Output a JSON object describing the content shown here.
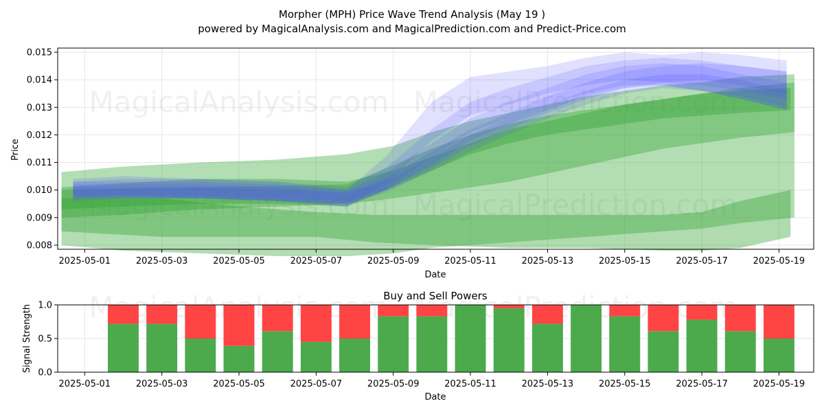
{
  "chart_data": [
    {
      "type": "area",
      "title": "Morpher (MPH) Price Wave Trend Analysis (May 19 )",
      "subtitle": "powered by MagicalAnalysis.com and MagicalPrediction.com and Predict-Price.com",
      "xlabel": "Date",
      "ylabel": "Price",
      "ylim": [
        0.00785,
        0.01515
      ],
      "xlim": [
        "2025-04-30.3",
        "2025-05-19.9"
      ],
      "grid": true,
      "x_ticks": [
        "2025-05-01",
        "2025-05-03",
        "2025-05-05",
        "2025-05-07",
        "2025-05-09",
        "2025-05-11",
        "2025-05-13",
        "2025-05-15",
        "2025-05-17",
        "2025-05-19"
      ],
      "y_ticks": [
        "0.008",
        "0.009",
        "0.010",
        "0.011",
        "0.012",
        "0.013",
        "0.014",
        "0.015"
      ],
      "green_bands": [
        {
          "x": [
            0.4,
            2,
            4,
            6,
            7.8,
            9,
            10,
            11,
            12,
            13,
            14,
            15,
            16,
            17,
            18,
            19.4
          ],
          "upper": [
            0.01065,
            0.01085,
            0.011,
            0.0111,
            0.0113,
            0.0116,
            0.0121,
            0.0125,
            0.0128,
            0.0131,
            0.0134,
            0.0136,
            0.0138,
            0.0139,
            0.0141,
            0.0142
          ],
          "lower": [
            0.008,
            0.0078,
            0.0077,
            0.0076,
            0.0076,
            0.0077,
            0.0079,
            0.008,
            0.0081,
            0.0082,
            0.0083,
            0.0084,
            0.0085,
            0.0086,
            0.0088,
            0.009
          ]
        },
        {
          "x": [
            0.4,
            2,
            4,
            6,
            7.8,
            9,
            10,
            11,
            12,
            13,
            14,
            15,
            16,
            17,
            18,
            19.4
          ],
          "upper": [
            0.0101,
            0.01025,
            0.0104,
            0.0104,
            0.0103,
            0.0107,
            0.0112,
            0.0117,
            0.0122,
            0.0125,
            0.0128,
            0.0131,
            0.0133,
            0.0135,
            0.0137,
            0.0139
          ],
          "lower": [
            0.009,
            0.0091,
            0.0093,
            0.0094,
            0.0095,
            0.0097,
            0.0099,
            0.0101,
            0.0103,
            0.0106,
            0.0109,
            0.0112,
            0.0115,
            0.0117,
            0.0119,
            0.0121
          ]
        },
        {
          "x": [
            0.4,
            3,
            5,
            7,
            8.5,
            10,
            12,
            14,
            16,
            17,
            18,
            19.3
          ],
          "upper": [
            0.0097,
            0.0097,
            0.0094,
            0.0092,
            0.0091,
            0.0091,
            0.0091,
            0.0091,
            0.0091,
            0.0092,
            0.0096,
            0.01
          ],
          "lower": [
            0.0085,
            0.0083,
            0.0083,
            0.0083,
            0.0081,
            0.008,
            0.0079,
            0.0079,
            0.0078,
            0.0078,
            0.0079,
            0.0083
          ]
        },
        {
          "x": [
            0.4,
            2,
            4,
            6,
            7.8,
            9,
            10,
            11,
            12,
            13,
            14,
            15,
            16,
            17,
            18,
            19.3
          ],
          "upper": [
            0.01,
            0.01005,
            0.0101,
            0.01015,
            0.0102,
            0.0109,
            0.0115,
            0.012,
            0.0124,
            0.0127,
            0.0129,
            0.0131,
            0.0133,
            0.0135,
            0.0136,
            0.0137
          ],
          "lower": [
            0.0093,
            0.0094,
            0.0095,
            0.0095,
            0.0094,
            0.0101,
            0.0107,
            0.0113,
            0.0117,
            0.012,
            0.0122,
            0.0124,
            0.0126,
            0.0127,
            0.0128,
            0.0129
          ]
        }
      ],
      "blue_bands": [
        {
          "x": [
            0.7,
            2,
            4,
            6,
            7.8,
            8.8,
            10,
            11,
            12,
            13,
            14,
            15,
            16,
            17,
            18,
            19.2
          ],
          "upper": [
            0.0103,
            0.0104,
            0.0104,
            0.0103,
            0.01,
            0.0112,
            0.0132,
            0.0141,
            0.0143,
            0.0145,
            0.0148,
            0.015,
            0.0149,
            0.015,
            0.0149,
            0.0147
          ],
          "lower": [
            0.0097,
            0.0098,
            0.0097,
            0.0096,
            0.0094,
            0.0102,
            0.0118,
            0.0127,
            0.0131,
            0.0135,
            0.0138,
            0.014,
            0.0139,
            0.0138,
            0.0136,
            0.0133
          ]
        },
        {
          "x": [
            0.7,
            2,
            4,
            6,
            7.8,
            8.8,
            10,
            11,
            12,
            13,
            14,
            15,
            16,
            17,
            18,
            19.2
          ],
          "upper": [
            0.0104,
            0.0105,
            0.0104,
            0.0103,
            0.0101,
            0.0108,
            0.0122,
            0.0132,
            0.0137,
            0.0141,
            0.0145,
            0.0147,
            0.0148,
            0.0147,
            0.0145,
            0.0143
          ],
          "lower": [
            0.0096,
            0.0097,
            0.0097,
            0.0096,
            0.0094,
            0.01,
            0.0112,
            0.0121,
            0.0126,
            0.0131,
            0.0135,
            0.0138,
            0.0138,
            0.0136,
            0.0133,
            0.0129
          ]
        },
        {
          "x": [
            0.7,
            2,
            4,
            6,
            7.8,
            8.8,
            10,
            11,
            12,
            13,
            14,
            15,
            16,
            17,
            18,
            19.2
          ],
          "upper": [
            0.0103,
            0.0103,
            0.0103,
            0.0102,
            0.01,
            0.0106,
            0.0117,
            0.0126,
            0.0132,
            0.0137,
            0.0142,
            0.0145,
            0.0146,
            0.0145,
            0.0142,
            0.0139
          ],
          "lower": [
            0.0097,
            0.0097,
            0.0097,
            0.0096,
            0.0095,
            0.01,
            0.0109,
            0.0118,
            0.0124,
            0.0129,
            0.0134,
            0.0137,
            0.0138,
            0.0136,
            0.0133,
            0.0129
          ]
        },
        {
          "x": [
            0.7,
            2,
            4,
            6,
            7.8,
            8.8,
            10,
            11,
            12,
            13,
            14,
            15,
            16,
            17,
            18,
            19.2
          ],
          "upper": [
            0.0102,
            0.0102,
            0.0102,
            0.0101,
            0.0099,
            0.0104,
            0.0114,
            0.0122,
            0.0128,
            0.0134,
            0.0139,
            0.0143,
            0.0145,
            0.0146,
            0.0145,
            0.0143
          ],
          "lower": [
            0.0098,
            0.0098,
            0.0098,
            0.0097,
            0.0096,
            0.01,
            0.0108,
            0.0116,
            0.0122,
            0.0128,
            0.0133,
            0.0137,
            0.0139,
            0.014,
            0.0138,
            0.0135
          ]
        },
        {
          "x": [
            0.7,
            2,
            4,
            6,
            7.8,
            8.8,
            10,
            11,
            12,
            13,
            14,
            15,
            16,
            17,
            18,
            19.2
          ],
          "upper": [
            0.0101,
            0.0101,
            0.0101,
            0.01,
            0.0099,
            0.0103,
            0.0112,
            0.012,
            0.0126,
            0.0131,
            0.0136,
            0.014,
            0.0142,
            0.0142,
            0.014,
            0.0136
          ],
          "lower": [
            0.0097,
            0.0097,
            0.0097,
            0.0096,
            0.0095,
            0.0099,
            0.0107,
            0.0114,
            0.012,
            0.0126,
            0.0131,
            0.0135,
            0.0137,
            0.0136,
            0.0134,
            0.013
          ]
        }
      ],
      "colors": {
        "green": "#2ca02c",
        "blue": "#4d4dff",
        "teal": "#2a7070"
      },
      "watermarks": [
        "MagicalAnalysis.com",
        "MagicalPrediction.com"
      ]
    },
    {
      "type": "bar",
      "title": "Buy and Sell Powers",
      "xlabel": "Date",
      "ylabel": "Signal Strength",
      "ylim": [
        0.0,
        1.0
      ],
      "x_ticks": [
        "2025-05-01",
        "2025-05-03",
        "2025-05-05",
        "2025-05-07",
        "2025-05-09",
        "2025-05-11",
        "2025-05-13",
        "2025-05-15",
        "2025-05-17",
        "2025-05-19"
      ],
      "y_ticks": [
        "0.0",
        "0.5",
        "1.0"
      ],
      "categories": [
        "2025-05-02",
        "2025-05-03",
        "2025-05-04",
        "2025-05-05",
        "2025-05-06",
        "2025-05-07",
        "2025-05-08",
        "2025-05-09",
        "2025-05-10",
        "2025-05-11",
        "2025-05-12",
        "2025-05-13",
        "2025-05-14",
        "2025-05-15",
        "2025-05-16",
        "2025-05-17",
        "2025-05-18",
        "2025-05-19"
      ],
      "series": [
        {
          "name": "Buy",
          "color": "#4caa4c",
          "values": [
            0.72,
            0.72,
            0.5,
            0.39,
            0.61,
            0.45,
            0.5,
            0.83,
            0.83,
            1.0,
            0.95,
            0.72,
            1.0,
            0.83,
            0.61,
            0.78,
            0.61,
            0.5
          ]
        },
        {
          "name": "Sell",
          "color": "#ff4444",
          "values": [
            0.28,
            0.28,
            0.5,
            0.61,
            0.39,
            0.55,
            0.5,
            0.17,
            0.17,
            0.0,
            0.05,
            0.28,
            0.0,
            0.17,
            0.39,
            0.22,
            0.39,
            0.5
          ]
        }
      ],
      "watermarks": [
        "MagicalAnalysis.com",
        "MagicalPrediction.com"
      ]
    }
  ]
}
